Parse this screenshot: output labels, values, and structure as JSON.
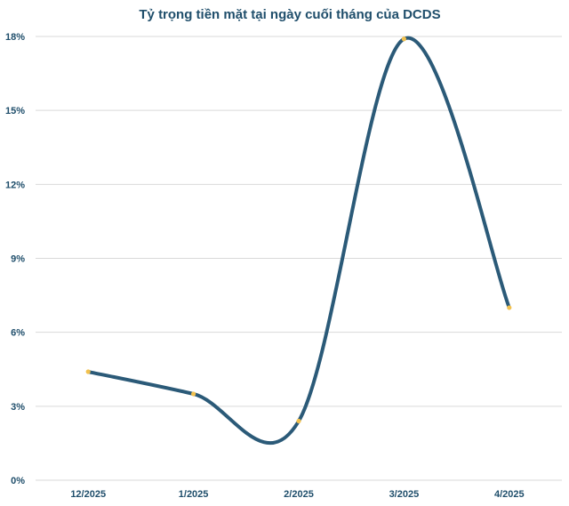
{
  "chart_data": {
    "type": "line",
    "title": "Tỷ trọng tiền mặt tại ngày cuối tháng của DCDS",
    "xlabel": "",
    "ylabel": "",
    "categories": [
      "12/2025",
      "1/2025",
      "2/2025",
      "3/2025",
      "4/2025"
    ],
    "series": [
      {
        "values": [
          4.4,
          3.5,
          2.4,
          17.9,
          7.0
        ]
      }
    ],
    "ylim": [
      0,
      18
    ],
    "yticks": [
      0,
      3,
      6,
      9,
      12,
      15,
      18
    ],
    "ytick_labels": [
      "0%",
      "3%",
      "6%",
      "9%",
      "12%",
      "15%",
      "18%"
    ],
    "grid": true,
    "smooth": true,
    "line_color": "#2b5a78",
    "marker_color": "#f2c14e"
  }
}
